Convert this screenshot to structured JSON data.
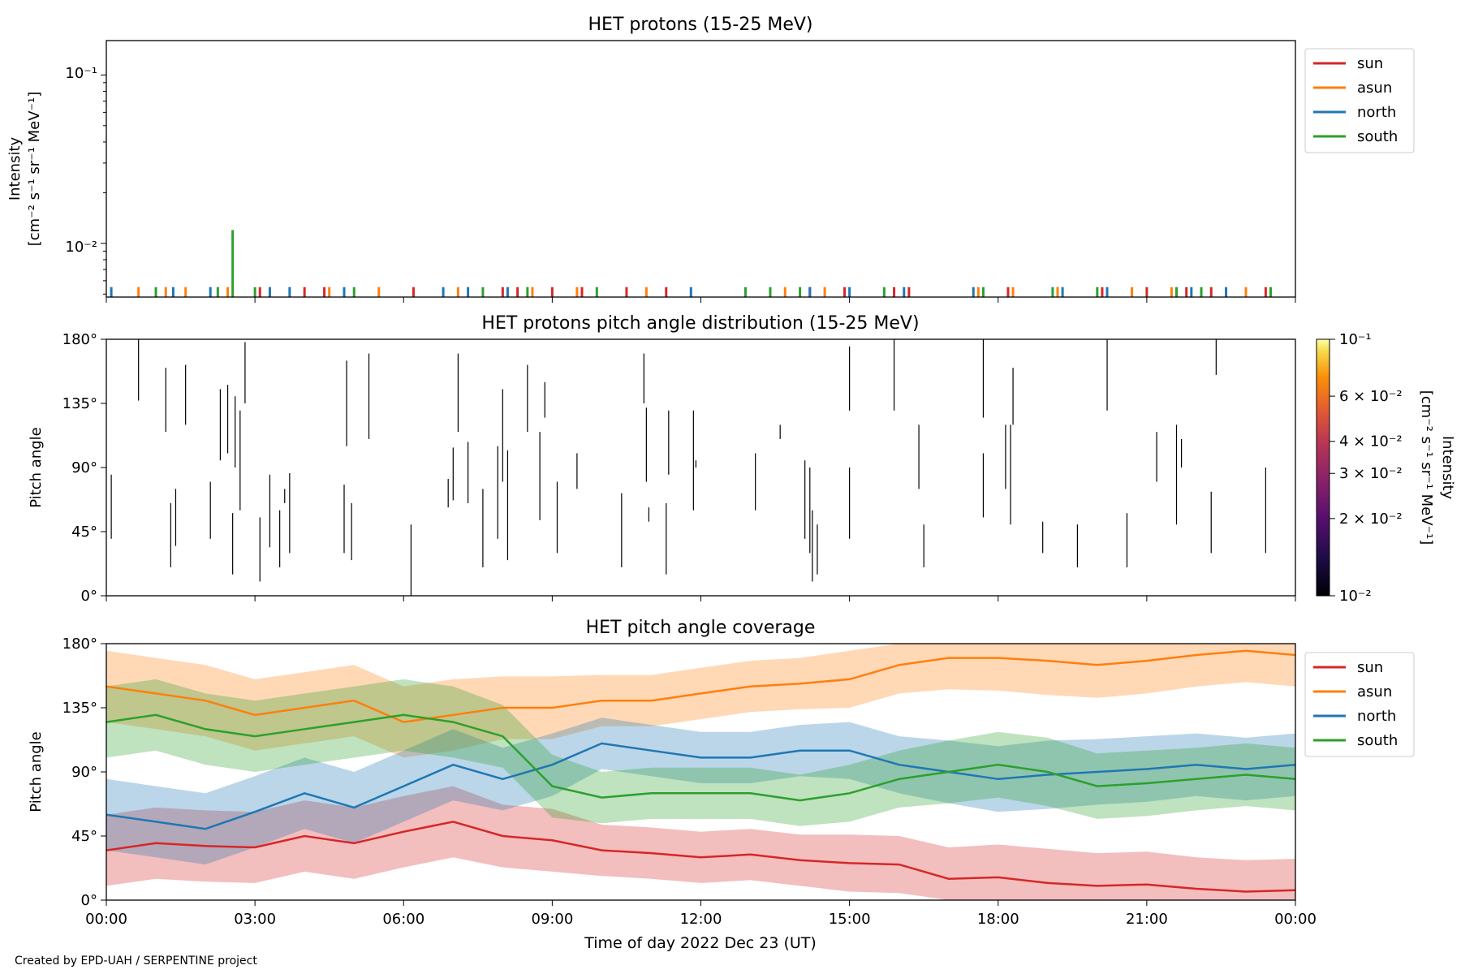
{
  "credit": "Created by EPD-UAH / SERPENTINE project",
  "xlabel": "Time of day 2022 Dec 23 (UT)",
  "x_ticks": [
    "00:00",
    "03:00",
    "06:00",
    "09:00",
    "12:00",
    "15:00",
    "18:00",
    "21:00",
    "00:00"
  ],
  "series_colors": {
    "sun": "#d62728",
    "asun": "#ff7f0e",
    "north": "#1f77b4",
    "south": "#2ca02c"
  },
  "legend_labels": [
    "sun",
    "asun",
    "north",
    "south"
  ],
  "chart_data": [
    {
      "type": "line",
      "title": "HET protons (15-25 MeV)",
      "ylabel_line1": "Intensity",
      "ylabel_line2": "[cm⁻² s⁻¹ sr⁻¹ MeV⁻¹]",
      "yscale": "log",
      "ylim": [
        0.0048,
        0.16
      ],
      "y_ticks": [
        "10⁻¹",
        "10⁻²"
      ],
      "xlim_hours": [
        0,
        24
      ],
      "legend": "top-right outside",
      "note_values": "isolated single-count spikes; baseline ~5.5e-3",
      "series": [
        {
          "name": "sun",
          "x_hours": [
            3.1,
            4.0,
            4.4,
            6.2,
            8.0,
            8.3,
            9.0,
            9.6,
            10.5,
            11.3,
            14.2,
            14.9,
            15.9,
            16.2,
            18.2,
            19.2,
            20.1,
            21.0,
            21.8,
            22.3,
            23.4
          ],
          "y": [
            0.0055,
            0.0055,
            0.0055,
            0.0055,
            0.0055,
            0.0055,
            0.0055,
            0.0055,
            0.0055,
            0.0055,
            0.0055,
            0.0055,
            0.0055,
            0.0055,
            0.0055,
            0.0055,
            0.0055,
            0.0055,
            0.0055,
            0.0055,
            0.0055
          ]
        },
        {
          "name": "asun",
          "x_hours": [
            0.65,
            1.2,
            1.6,
            2.45,
            4.5,
            5.5,
            7.1,
            8.6,
            9.5,
            10.9,
            13.7,
            14.5,
            17.6,
            18.3,
            19.2,
            20.7,
            21.5,
            23.0
          ],
          "y": [
            0.0055,
            0.0055,
            0.0055,
            0.0055,
            0.0055,
            0.0055,
            0.0055,
            0.0055,
            0.0055,
            0.0055,
            0.0055,
            0.0055,
            0.0055,
            0.0055,
            0.0055,
            0.0055,
            0.0055,
            0.0055
          ]
        },
        {
          "name": "north",
          "x_hours": [
            0.1,
            1.35,
            2.1,
            3.3,
            3.7,
            4.8,
            6.8,
            7.3,
            8.1,
            11.8,
            14.2,
            15.0,
            16.1,
            17.5,
            19.3,
            20.2,
            21.9,
            22.6
          ],
          "y": [
            0.0055,
            0.0055,
            0.0055,
            0.0055,
            0.0055,
            0.0055,
            0.0055,
            0.0055,
            0.0055,
            0.0055,
            0.0055,
            0.0055,
            0.0055,
            0.0055,
            0.0055,
            0.0055,
            0.0055,
            0.0055
          ]
        },
        {
          "name": "south",
          "x_hours": [
            1.0,
            2.25,
            2.55,
            3.0,
            5.0,
            7.6,
            8.5,
            9.9,
            12.9,
            13.4,
            14.0,
            15.7,
            17.7,
            19.1,
            20.0,
            21.6,
            22.1,
            23.5
          ],
          "y": [
            0.0055,
            0.0055,
            0.012,
            0.0055,
            0.0055,
            0.0055,
            0.0055,
            0.0055,
            0.0055,
            0.0055,
            0.0055,
            0.0055,
            0.0055,
            0.0055,
            0.0055,
            0.0055,
            0.0055,
            0.0055
          ]
        }
      ]
    },
    {
      "type": "heatmap",
      "title": "HET protons pitch angle distribution (15-25 MeV)",
      "ylabel": "Pitch angle",
      "ylim": [
        0,
        180
      ],
      "y_ticks": [
        "0°",
        "45°",
        "90°",
        "135°",
        "180°"
      ],
      "xlim_hours": [
        0,
        24
      ],
      "colorbar_label_line1": "Intensity",
      "colorbar_label_line2": "[cm⁻² s⁻¹ sr⁻¹ MeV⁻¹]",
      "colorbar_range": [
        0.01,
        0.1
      ],
      "colorbar_scale": "log",
      "colorbar_ticks": [
        "10⁻¹",
        "6 × 10⁻²",
        "4 × 10⁻²",
        "3 × 10⁻²",
        "2 × 10⁻²",
        "10⁻²"
      ],
      "segments": [
        [
          0.1,
          40,
          85
        ],
        [
          0.65,
          137,
          180
        ],
        [
          1.2,
          115,
          160
        ],
        [
          1.3,
          20,
          65
        ],
        [
          1.4,
          35,
          75
        ],
        [
          1.6,
          120,
          162
        ],
        [
          2.1,
          40,
          80
        ],
        [
          2.3,
          95,
          145
        ],
        [
          2.45,
          100,
          148
        ],
        [
          2.55,
          58,
          15
        ],
        [
          2.6,
          90,
          140
        ],
        [
          2.7,
          60,
          130
        ],
        [
          2.8,
          135,
          178
        ],
        [
          3.1,
          10,
          55
        ],
        [
          3.3,
          34,
          85
        ],
        [
          3.5,
          20,
          60
        ],
        [
          3.6,
          75,
          65
        ],
        [
          3.7,
          30,
          86
        ],
        [
          4.8,
          30,
          78
        ],
        [
          4.85,
          105,
          165
        ],
        [
          4.95,
          25,
          65
        ],
        [
          5.3,
          110,
          170
        ],
        [
          6.15,
          0,
          50
        ],
        [
          6.9,
          62,
          82
        ],
        [
          7.1,
          115,
          170
        ],
        [
          7.0,
          67,
          104
        ],
        [
          7.3,
          65,
          108
        ],
        [
          7.6,
          20,
          75
        ],
        [
          7.9,
          40,
          105
        ],
        [
          8.0,
          145,
          80
        ],
        [
          8.1,
          25,
          102
        ],
        [
          8.5,
          115,
          162
        ],
        [
          8.75,
          53,
          115
        ],
        [
          8.85,
          125,
          150
        ],
        [
          9.1,
          30,
          80
        ],
        [
          9.5,
          100,
          75
        ],
        [
          10.4,
          20,
          72
        ],
        [
          10.85,
          135,
          170
        ],
        [
          10.9,
          80,
          132
        ],
        [
          10.95,
          62,
          52
        ],
        [
          11.35,
          85,
          130
        ],
        [
          11.3,
          15,
          65
        ],
        [
          11.85,
          60,
          130
        ],
        [
          11.9,
          95,
          90
        ],
        [
          13.1,
          60,
          100
        ],
        [
          13.6,
          110,
          120
        ],
        [
          14.1,
          40,
          95
        ],
        [
          14.2,
          30,
          90
        ],
        [
          14.25,
          10,
          60
        ],
        [
          14.35,
          15,
          50
        ],
        [
          15.0,
          40,
          90
        ],
        [
          15.0,
          130,
          175
        ],
        [
          15.9,
          180,
          130
        ],
        [
          16.4,
          75,
          120
        ],
        [
          16.5,
          20,
          50
        ],
        [
          17.7,
          55,
          100
        ],
        [
          17.7,
          125,
          180
        ],
        [
          18.15,
          75,
          120
        ],
        [
          18.25,
          50,
          120
        ],
        [
          18.3,
          120,
          160
        ],
        [
          18.9,
          30,
          52
        ],
        [
          19.6,
          20,
          50
        ],
        [
          20.2,
          130,
          180
        ],
        [
          20.6,
          20,
          58
        ],
        [
          21.2,
          80,
          115
        ],
        [
          21.7,
          90,
          110
        ],
        [
          21.6,
          50,
          120
        ],
        [
          22.3,
          30,
          73
        ],
        [
          22.4,
          155,
          180
        ],
        [
          23.4,
          30,
          90
        ]
      ]
    },
    {
      "type": "line",
      "title": "HET pitch angle coverage",
      "ylabel": "Pitch angle",
      "ylim": [
        0,
        180
      ],
      "y_ticks": [
        "0°",
        "45°",
        "90°",
        "135°",
        "180°"
      ],
      "xlim_hours": [
        0,
        24
      ],
      "legend": "top-right outside",
      "series": [
        {
          "name": "sun",
          "x_hours": [
            0,
            1,
            2,
            3,
            4,
            5,
            6,
            7,
            8,
            9,
            10,
            11,
            12,
            13,
            14,
            15,
            16,
            17,
            18,
            19,
            20,
            21,
            22,
            23,
            24
          ],
          "y": [
            35,
            40,
            38,
            37,
            45,
            40,
            48,
            55,
            45,
            42,
            35,
            33,
            30,
            32,
            28,
            26,
            25,
            15,
            16,
            12,
            10,
            11,
            8,
            6,
            7
          ],
          "band_half_width": [
            25,
            25,
            25,
            25,
            25,
            25,
            25,
            25,
            22,
            22,
            18,
            18,
            18,
            18,
            18,
            20,
            20,
            22,
            23,
            24,
            23,
            23,
            22,
            22,
            22
          ]
        },
        {
          "name": "asun",
          "x_hours": [
            0,
            1,
            2,
            3,
            4,
            5,
            6,
            7,
            8,
            9,
            10,
            11,
            12,
            13,
            14,
            15,
            16,
            17,
            18,
            19,
            20,
            21,
            22,
            23,
            24
          ],
          "y": [
            150,
            145,
            140,
            130,
            135,
            140,
            125,
            130,
            135,
            135,
            140,
            140,
            145,
            150,
            152,
            155,
            165,
            170,
            170,
            168,
            165,
            168,
            172,
            175,
            172
          ],
          "band_half_width": [
            25,
            25,
            25,
            25,
            25,
            25,
            25,
            25,
            22,
            22,
            18,
            18,
            18,
            18,
            18,
            20,
            20,
            22,
            23,
            24,
            23,
            23,
            22,
            22,
            22
          ]
        },
        {
          "name": "north",
          "x_hours": [
            0,
            1,
            2,
            3,
            4,
            5,
            6,
            7,
            8,
            9,
            10,
            11,
            12,
            13,
            14,
            15,
            16,
            17,
            18,
            19,
            20,
            21,
            22,
            23,
            24
          ],
          "y": [
            60,
            55,
            50,
            62,
            75,
            65,
            80,
            95,
            85,
            95,
            110,
            105,
            100,
            100,
            105,
            105,
            95,
            90,
            85,
            88,
            90,
            92,
            95,
            92,
            95
          ],
          "band_half_width": [
            25,
            25,
            25,
            25,
            25,
            25,
            25,
            25,
            22,
            22,
            18,
            18,
            18,
            18,
            18,
            20,
            20,
            22,
            23,
            24,
            23,
            23,
            22,
            22,
            22
          ]
        },
        {
          "name": "south",
          "x_hours": [
            0,
            1,
            2,
            3,
            4,
            5,
            6,
            7,
            8,
            9,
            10,
            11,
            12,
            13,
            14,
            15,
            16,
            17,
            18,
            19,
            20,
            21,
            22,
            23,
            24
          ],
          "y": [
            125,
            130,
            120,
            115,
            120,
            125,
            130,
            125,
            115,
            80,
            72,
            75,
            75,
            75,
            70,
            75,
            85,
            90,
            95,
            90,
            80,
            82,
            85,
            88,
            85
          ],
          "band_half_width": [
            25,
            25,
            25,
            25,
            25,
            25,
            25,
            25,
            22,
            22,
            18,
            18,
            18,
            18,
            18,
            20,
            20,
            22,
            23,
            24,
            23,
            23,
            22,
            22,
            22
          ]
        }
      ]
    }
  ]
}
